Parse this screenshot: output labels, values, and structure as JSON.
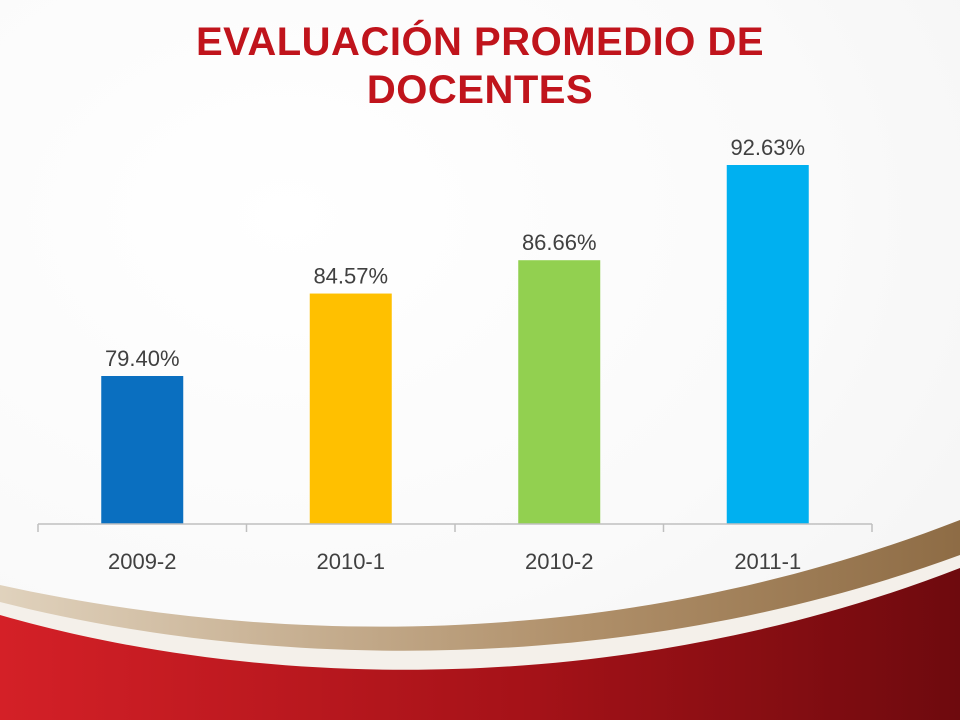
{
  "slide": {
    "title_line1": "EVALUACIÓN PROMEDIO DE",
    "title_line2": "DOCENTES",
    "title_color": "#c0141c"
  },
  "chart_data": {
    "type": "bar",
    "title": "EVALUACIÓN PROMEDIO DE DOCENTES",
    "xlabel": "",
    "ylabel": "",
    "categories": [
      "2009-2",
      "2010-1",
      "2010-2",
      "2011-1"
    ],
    "values": [
      79.4,
      84.57,
      86.66,
      92.63
    ],
    "value_labels": [
      "79.40%",
      "84.57%",
      "86.66%",
      "92.63%"
    ],
    "colors": [
      "#0a6fc0",
      "#ffc000",
      "#92d050",
      "#00b0f0"
    ],
    "unit": "%",
    "grid": false,
    "legend": "none"
  },
  "decor": {
    "swoosh_dark": "#7a0c10",
    "swoosh_red": "#d42027",
    "swoosh_gold": "#a8875a"
  }
}
